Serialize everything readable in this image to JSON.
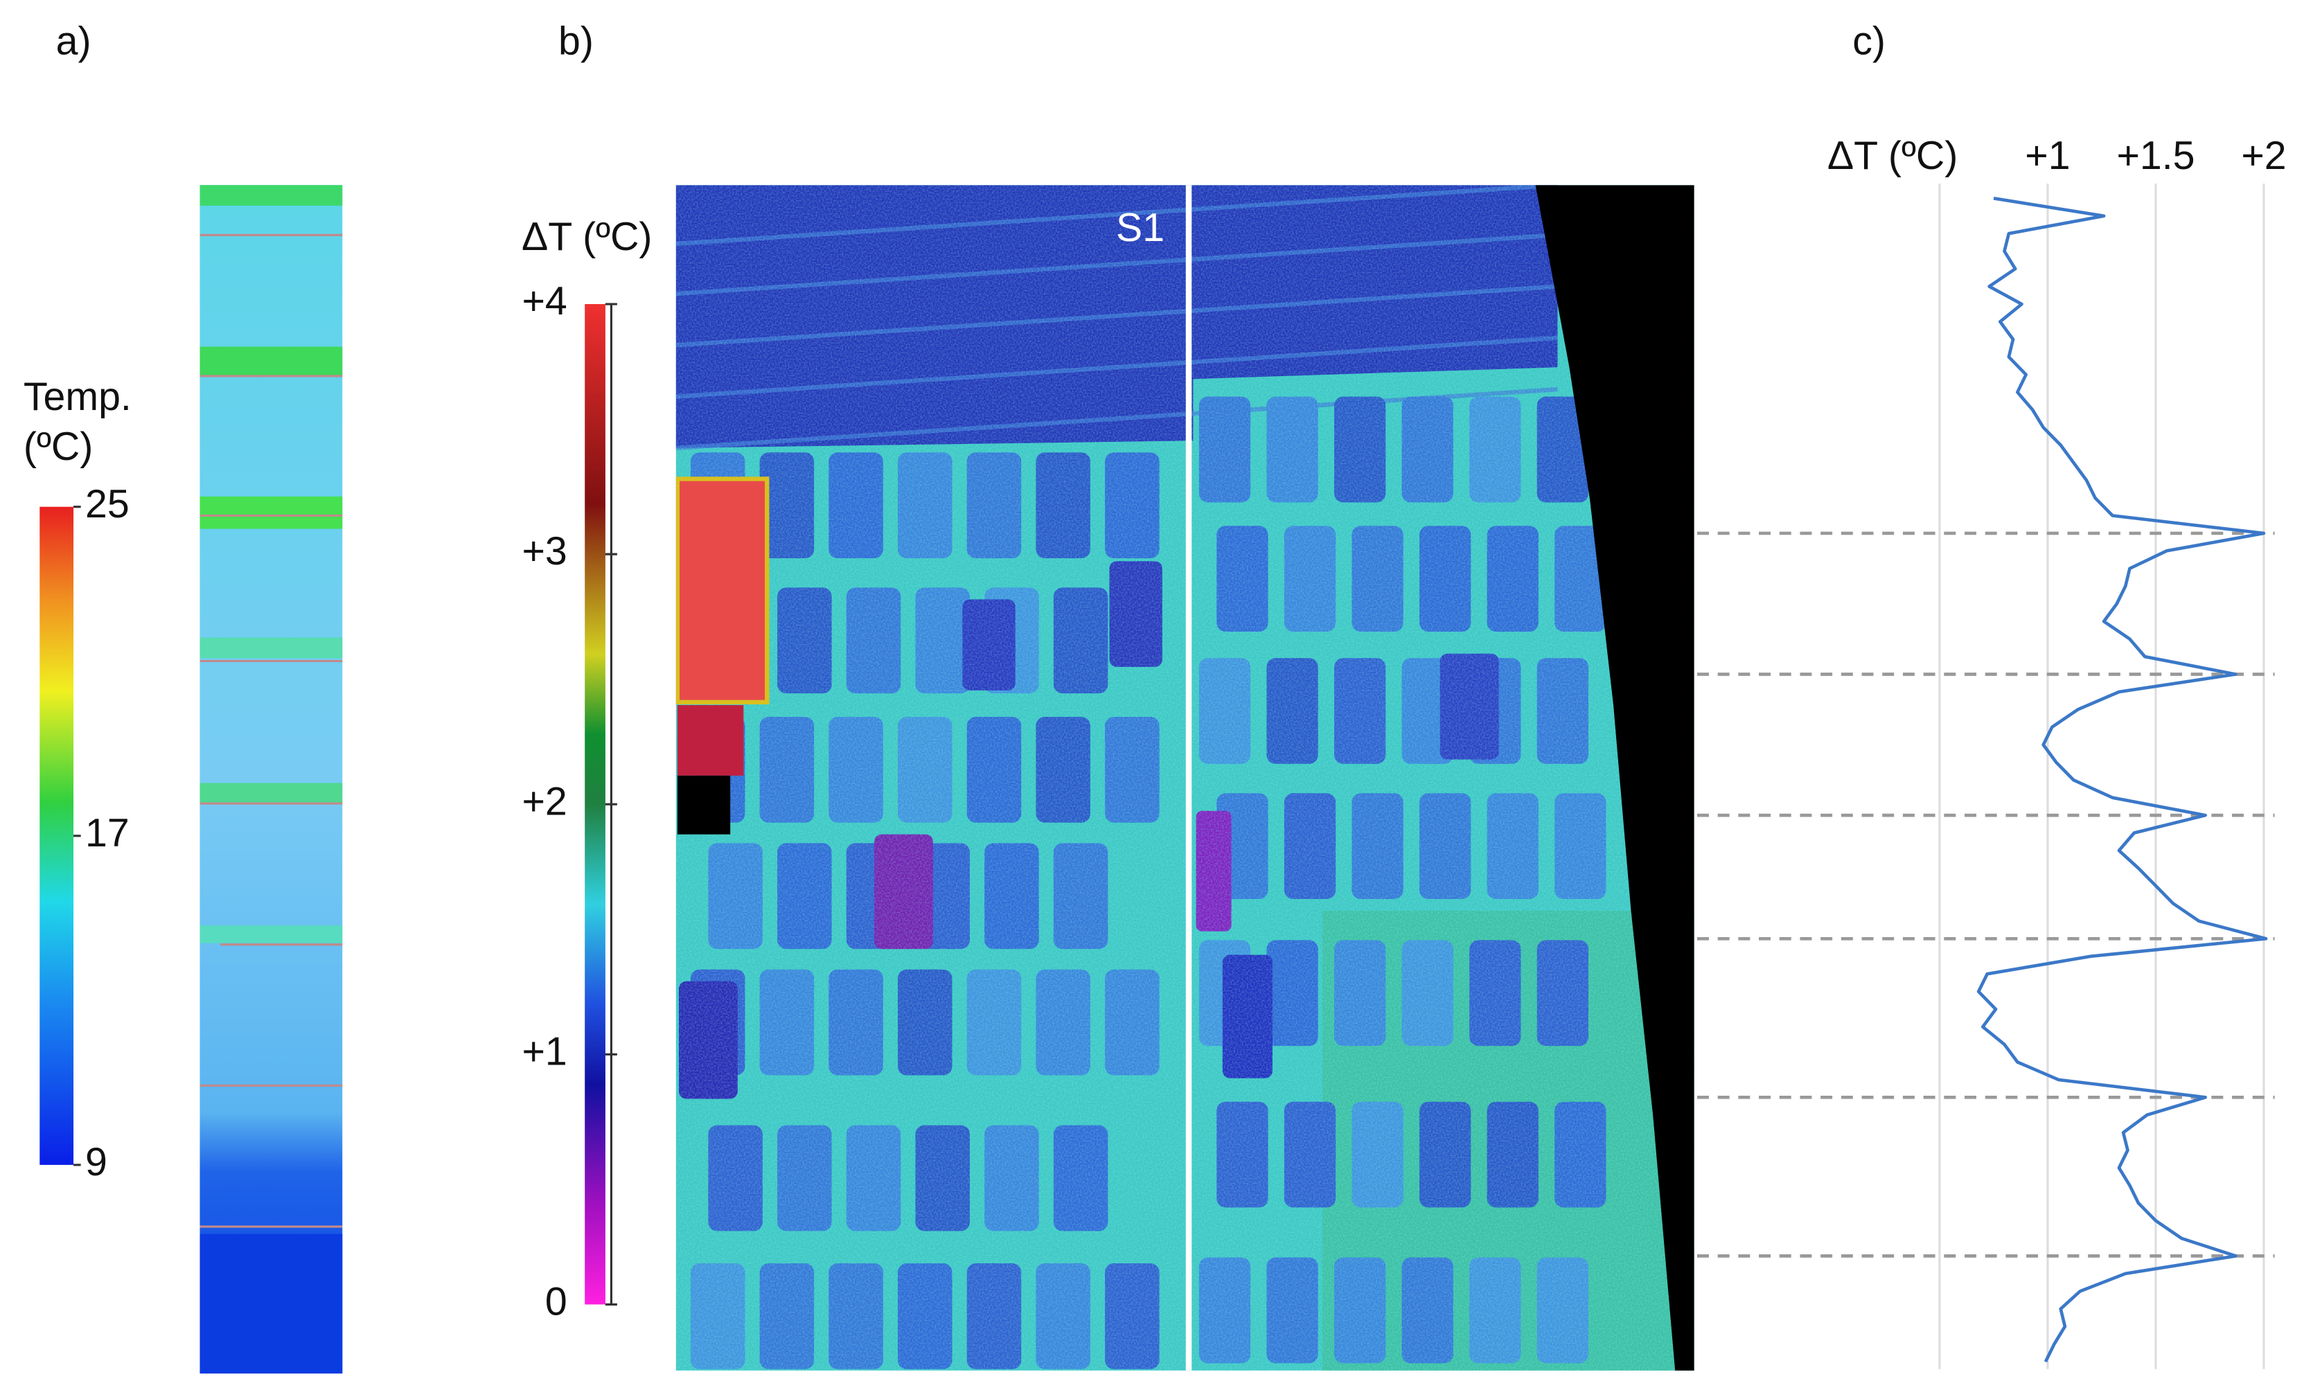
{
  "figure": {
    "panel_labels": [
      "a)",
      "b)",
      "c)"
    ],
    "thermal_image_label": "S1"
  },
  "chart_data": [
    {
      "type": "colorbar",
      "title_lines": [
        "Temp.",
        "(ºC)"
      ],
      "ylim": [
        9,
        25
      ],
      "yticks": [
        9,
        17,
        25
      ]
    },
    {
      "type": "colorbar",
      "title": "ΔT (ºC)",
      "ylim": [
        0,
        4
      ],
      "yticks": [
        0,
        {
          "value": 1,
          "label": "+1"
        },
        {
          "value": 2,
          "label": "+2"
        },
        {
          "value": 3,
          "label": "+3"
        },
        {
          "value": 4,
          "label": "+4"
        }
      ]
    },
    {
      "type": "line",
      "xlabel": "ΔT (ºC)",
      "xlim": [
        0.5,
        2.05
      ],
      "xticks": [
        {
          "value": 1,
          "label": "+1"
        },
        {
          "value": 1.5,
          "label": "+1.5"
        },
        {
          "value": 2,
          "label": "+2"
        }
      ],
      "grid": true,
      "series": [
        {
          "color": "#3b78c8",
          "values": [
            0.75,
            1.26,
            0.82,
            0.8,
            0.85,
            0.73,
            0.88,
            0.78,
            0.84,
            0.82,
            0.9,
            0.86,
            0.93,
            0.98,
            1.06,
            1.12,
            1.18,
            1.22,
            1.3,
            2.0,
            1.55,
            1.38,
            1.36,
            1.32,
            1.26,
            1.38,
            1.45,
            1.87,
            1.33,
            1.14,
            1.02,
            0.98,
            1.04,
            1.12,
            1.3,
            1.73,
            1.4,
            1.33,
            1.42,
            1.5,
            1.58,
            1.7,
            2.01,
            1.2,
            0.72,
            0.68,
            0.76,
            0.7,
            0.8,
            0.86,
            1.05,
            1.73,
            1.46,
            1.35,
            1.37,
            1.33,
            1.38,
            1.42,
            1.5,
            1.62,
            1.87,
            1.36,
            1.15,
            1.06,
            1.08,
            1.03,
            0.99
          ]
        }
      ]
    }
  ]
}
